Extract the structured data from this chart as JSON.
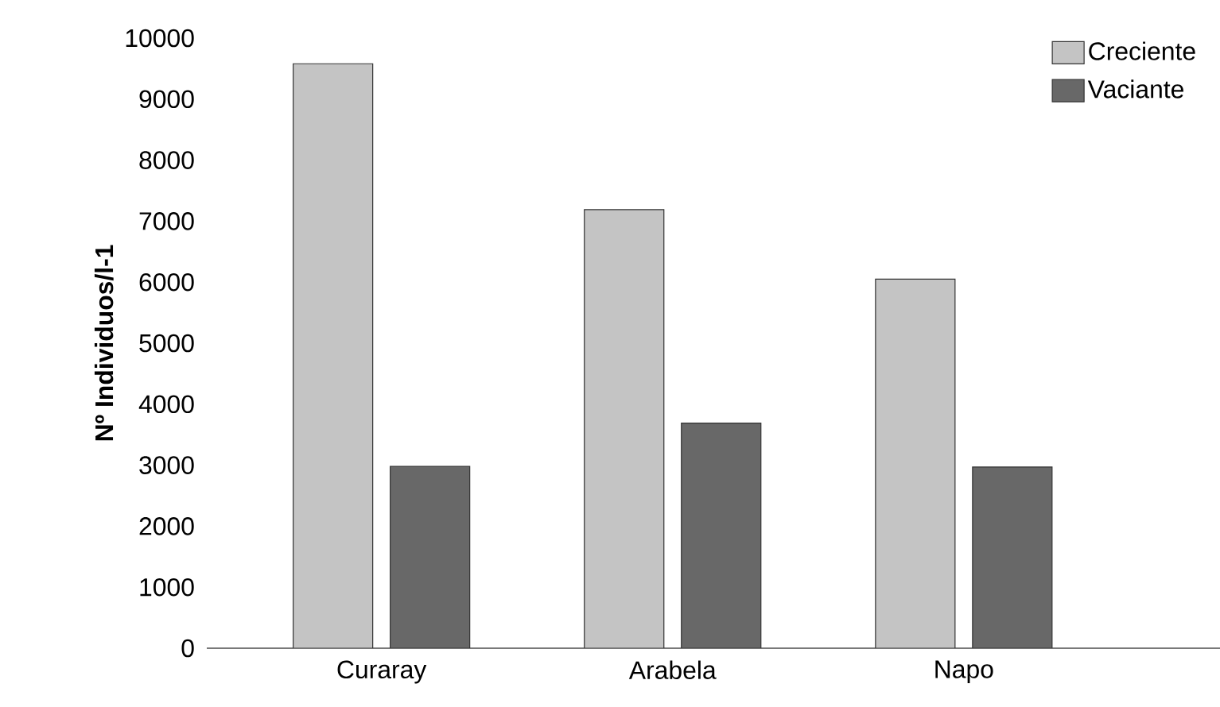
{
  "chart_data": {
    "type": "bar",
    "ylabel": "**Nº Individuos/l-1**",
    "categories": [
      "Curaray",
      "Arabela",
      "Napo"
    ],
    "series": [
      {
        "name": "Creciente",
        "color": "#c4c4c4",
        "values": [
          9580,
          7190,
          6050
        ]
      },
      {
        "name": "Vaciante",
        "color": "#686868",
        "values": [
          2980,
          3690,
          2970
        ]
      }
    ],
    "ylim": [
      0,
      10000
    ],
    "yticks": [
      0,
      1000,
      2000,
      3000,
      4000,
      5000,
      6000,
      7000,
      8000,
      9000,
      10000
    ],
    "legend": "top right",
    "grid": false
  }
}
